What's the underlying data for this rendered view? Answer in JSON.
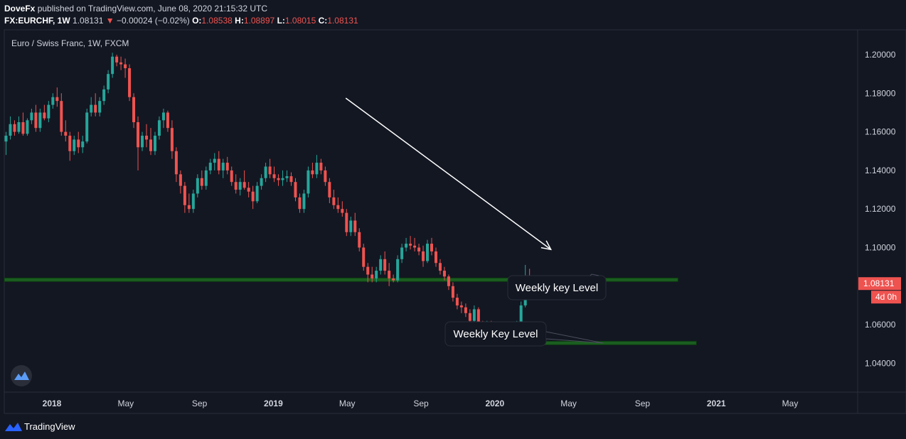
{
  "header": {
    "author": "DoveFx",
    "published_text": "published on TradingView.com, June 08, 2020 21:15:32 UTC",
    "symbol": "FX:EURCHF, 1W",
    "last": "1.08131",
    "change": "−0.00024 (−0.02%)",
    "open_label": "O:",
    "open": "1.08538",
    "high_label": "H:",
    "high": "1.08897",
    "low_label": "L:",
    "low": "1.08015",
    "close_label": "C:",
    "close": "1.08131"
  },
  "footer": {
    "brand": "TradingView"
  },
  "colors": {
    "background": "#131722",
    "up": "#26a69a",
    "down": "#ef5350",
    "key_level": "#1b5e20",
    "arrow": "#ffffff"
  },
  "chart_data": {
    "type": "candlestick",
    "title": "Euro / Swiss Franc, 1W, FXCM",
    "timeframe": "1W",
    "x_axis": {
      "labels": [
        "2018",
        "May",
        "Sep",
        "2019",
        "May",
        "Sep",
        "2020",
        "May",
        "Sep",
        "2021",
        "May"
      ],
      "bold_labels": [
        "2018",
        "2019",
        "2020",
        "2021"
      ]
    },
    "y_axis": {
      "ticks": [
        "1.20000",
        "1.18000",
        "1.16000",
        "1.14000",
        "1.12000",
        "1.10000",
        "1.06000",
        "1.04000"
      ],
      "ylim": [
        1.025,
        1.208
      ]
    },
    "last_price_label": "1.08131",
    "countdown_label": "4d 0h",
    "key_levels": [
      {
        "price": 1.0833,
        "from": "2017-12",
        "to": "2020-11",
        "label": "Weekly key Level"
      },
      {
        "price": 1.0505,
        "from": "2020-03",
        "to": "2020-12",
        "label": "Weekly Key Level"
      }
    ],
    "trend_arrow": {
      "from": [
        "2019-05",
        1.1775
      ],
      "to": [
        "2020-04",
        1.099
      ]
    },
    "candles": [
      [
        1.155,
        1.16,
        1.148,
        1.158
      ],
      [
        1.158,
        1.168,
        1.156,
        1.164
      ],
      [
        1.164,
        1.166,
        1.158,
        1.16
      ],
      [
        1.16,
        1.168,
        1.159,
        1.165
      ],
      [
        1.165,
        1.17,
        1.158,
        1.159
      ],
      [
        1.159,
        1.167,
        1.158,
        1.166
      ],
      [
        1.166,
        1.172,
        1.164,
        1.17
      ],
      [
        1.17,
        1.174,
        1.16,
        1.162
      ],
      [
        1.162,
        1.172,
        1.16,
        1.17
      ],
      [
        1.17,
        1.174,
        1.166,
        1.167
      ],
      [
        1.167,
        1.176,
        1.165,
        1.174
      ],
      [
        1.174,
        1.18,
        1.172,
        1.178
      ],
      [
        1.178,
        1.183,
        1.173,
        1.176
      ],
      [
        1.176,
        1.18,
        1.158,
        1.16
      ],
      [
        1.16,
        1.166,
        1.155,
        1.158
      ],
      [
        1.158,
        1.16,
        1.145,
        1.15
      ],
      [
        1.15,
        1.158,
        1.148,
        1.156
      ],
      [
        1.156,
        1.16,
        1.149,
        1.152
      ],
      [
        1.152,
        1.158,
        1.149,
        1.155
      ],
      [
        1.155,
        1.172,
        1.154,
        1.17
      ],
      [
        1.17,
        1.178,
        1.168,
        1.174
      ],
      [
        1.174,
        1.18,
        1.168,
        1.17
      ],
      [
        1.17,
        1.178,
        1.168,
        1.176
      ],
      [
        1.176,
        1.184,
        1.174,
        1.182
      ],
      [
        1.182,
        1.192,
        1.18,
        1.19
      ],
      [
        1.19,
        1.201,
        1.188,
        1.199
      ],
      [
        1.199,
        1.2,
        1.194,
        1.196
      ],
      [
        1.196,
        1.199,
        1.192,
        1.195
      ],
      [
        1.195,
        1.198,
        1.188,
        1.193
      ],
      [
        1.193,
        1.195,
        1.176,
        1.178
      ],
      [
        1.178,
        1.18,
        1.162,
        1.165
      ],
      [
        1.165,
        1.168,
        1.14,
        1.152
      ],
      [
        1.152,
        1.16,
        1.15,
        1.158
      ],
      [
        1.158,
        1.164,
        1.152,
        1.156
      ],
      [
        1.156,
        1.162,
        1.148,
        1.15
      ],
      [
        1.15,
        1.16,
        1.148,
        1.158
      ],
      [
        1.158,
        1.168,
        1.156,
        1.166
      ],
      [
        1.166,
        1.172,
        1.162,
        1.17
      ],
      [
        1.17,
        1.171,
        1.16,
        1.162
      ],
      [
        1.162,
        1.166,
        1.146,
        1.15
      ],
      [
        1.15,
        1.152,
        1.134,
        1.138
      ],
      [
        1.138,
        1.14,
        1.128,
        1.132
      ],
      [
        1.132,
        1.134,
        1.118,
        1.122
      ],
      [
        1.122,
        1.128,
        1.118,
        1.12
      ],
      [
        1.12,
        1.13,
        1.118,
        1.128
      ],
      [
        1.128,
        1.138,
        1.126,
        1.136
      ],
      [
        1.136,
        1.14,
        1.13,
        1.132
      ],
      [
        1.132,
        1.142,
        1.13,
        1.14
      ],
      [
        1.14,
        1.146,
        1.138,
        1.144
      ],
      [
        1.144,
        1.149,
        1.14,
        1.146
      ],
      [
        1.146,
        1.15,
        1.138,
        1.14
      ],
      [
        1.14,
        1.146,
        1.136,
        1.144
      ],
      [
        1.144,
        1.147,
        1.138,
        1.14
      ],
      [
        1.14,
        1.142,
        1.132,
        1.134
      ],
      [
        1.134,
        1.138,
        1.128,
        1.13
      ],
      [
        1.13,
        1.136,
        1.127,
        1.134
      ],
      [
        1.134,
        1.14,
        1.13,
        1.131
      ],
      [
        1.131,
        1.134,
        1.126,
        1.129
      ],
      [
        1.129,
        1.132,
        1.12,
        1.124
      ],
      [
        1.124,
        1.134,
        1.123,
        1.132
      ],
      [
        1.132,
        1.138,
        1.13,
        1.136
      ],
      [
        1.136,
        1.144,
        1.134,
        1.142
      ],
      [
        1.142,
        1.146,
        1.136,
        1.138
      ],
      [
        1.138,
        1.142,
        1.134,
        1.136
      ],
      [
        1.136,
        1.138,
        1.132,
        1.135
      ],
      [
        1.135,
        1.14,
        1.132,
        1.136
      ],
      [
        1.136,
        1.14,
        1.134,
        1.137
      ],
      [
        1.137,
        1.139,
        1.132,
        1.134
      ],
      [
        1.134,
        1.136,
        1.124,
        1.126
      ],
      [
        1.126,
        1.128,
        1.118,
        1.12
      ],
      [
        1.12,
        1.13,
        1.118,
        1.128
      ],
      [
        1.128,
        1.142,
        1.126,
        1.14
      ],
      [
        1.14,
        1.144,
        1.136,
        1.138
      ],
      [
        1.138,
        1.148,
        1.136,
        1.144
      ],
      [
        1.144,
        1.146,
        1.138,
        1.14
      ],
      [
        1.14,
        1.142,
        1.132,
        1.134
      ],
      [
        1.134,
        1.136,
        1.123,
        1.126
      ],
      [
        1.126,
        1.13,
        1.12,
        1.122
      ],
      [
        1.122,
        1.126,
        1.118,
        1.12
      ],
      [
        1.12,
        1.124,
        1.116,
        1.118
      ],
      [
        1.118,
        1.12,
        1.106,
        1.108
      ],
      [
        1.108,
        1.116,
        1.106,
        1.114
      ],
      [
        1.114,
        1.118,
        1.106,
        1.108
      ],
      [
        1.108,
        1.11,
        1.098,
        1.1
      ],
      [
        1.1,
        1.102,
        1.088,
        1.09
      ],
      [
        1.09,
        1.092,
        1.082,
        1.086
      ],
      [
        1.086,
        1.09,
        1.082,
        1.084
      ],
      [
        1.084,
        1.09,
        1.082,
        1.088
      ],
      [
        1.088,
        1.096,
        1.086,
        1.094
      ],
      [
        1.094,
        1.098,
        1.086,
        1.088
      ],
      [
        1.088,
        1.092,
        1.08,
        1.084
      ],
      [
        1.084,
        1.086,
        1.082,
        1.083
      ],
      [
        1.083,
        1.096,
        1.082,
        1.094
      ],
      [
        1.094,
        1.102,
        1.092,
        1.1
      ],
      [
        1.1,
        1.105,
        1.098,
        1.102
      ],
      [
        1.102,
        1.106,
        1.099,
        1.101
      ],
      [
        1.101,
        1.105,
        1.098,
        1.1
      ],
      [
        1.1,
        1.102,
        1.096,
        1.098
      ],
      [
        1.098,
        1.101,
        1.09,
        1.093
      ],
      [
        1.093,
        1.104,
        1.092,
        1.102
      ],
      [
        1.102,
        1.105,
        1.096,
        1.098
      ],
      [
        1.098,
        1.1,
        1.09,
        1.092
      ],
      [
        1.092,
        1.094,
        1.086,
        1.088
      ],
      [
        1.088,
        1.09,
        1.083,
        1.085
      ],
      [
        1.085,
        1.086,
        1.078,
        1.08
      ],
      [
        1.08,
        1.082,
        1.072,
        1.074
      ],
      [
        1.074,
        1.076,
        1.068,
        1.07
      ],
      [
        1.07,
        1.072,
        1.066,
        1.069
      ],
      [
        1.069,
        1.071,
        1.064,
        1.066
      ],
      [
        1.066,
        1.068,
        1.06,
        1.062
      ],
      [
        1.062,
        1.07,
        1.061,
        1.068
      ],
      [
        1.068,
        1.069,
        1.058,
        1.06
      ],
      [
        1.06,
        1.062,
        1.054,
        1.056
      ],
      [
        1.056,
        1.062,
        1.053,
        1.06
      ],
      [
        1.06,
        1.062,
        1.056,
        1.058
      ],
      [
        1.058,
        1.06,
        1.052,
        1.054
      ],
      [
        1.054,
        1.056,
        1.05,
        1.053
      ],
      [
        1.053,
        1.057,
        1.051,
        1.055
      ],
      [
        1.055,
        1.056,
        1.05,
        1.052
      ],
      [
        1.052,
        1.056,
        1.05,
        1.051
      ],
      [
        1.051,
        1.062,
        1.05,
        1.06
      ],
      [
        1.06,
        1.072,
        1.059,
        1.07
      ],
      [
        1.07,
        1.091,
        1.069,
        1.0854
      ],
      [
        1.0854,
        1.089,
        1.0802,
        1.0813
      ]
    ]
  }
}
